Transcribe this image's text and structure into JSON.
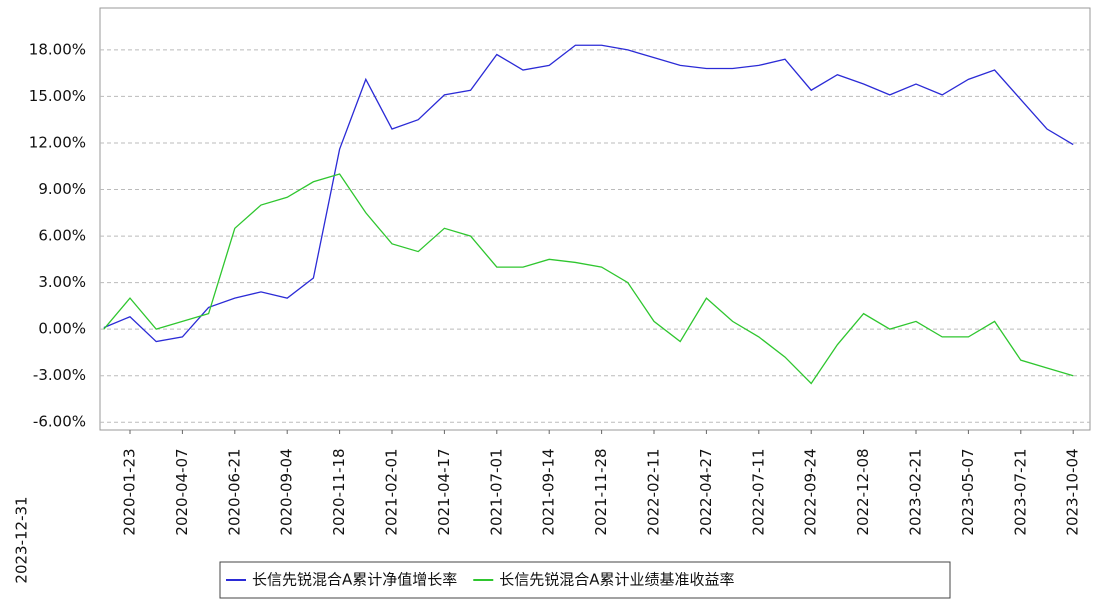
{
  "chart_data": {
    "type": "line",
    "x_start_label": "2023-12-31",
    "categories": [
      null,
      "2020-01-23",
      null,
      "2020-04-07",
      null,
      "2020-06-21",
      null,
      "2020-09-04",
      null,
      "2020-11-18",
      null,
      "2021-02-01",
      null,
      "2021-04-17",
      null,
      "2021-07-01",
      null,
      "2021-09-14",
      null,
      "2021-11-28",
      null,
      "2022-02-11",
      null,
      "2022-04-27",
      null,
      "2022-07-11",
      null,
      "2022-09-24",
      null,
      "2022-12-08",
      null,
      "2023-02-21",
      null,
      "2023-05-07",
      null,
      "2023-07-21",
      null,
      "2023-10-04"
    ],
    "series": [
      {
        "name": "长信先锐混合A累计净值增长率",
        "color": "#2b2bd6",
        "values": [
          0.1,
          0.8,
          -0.8,
          -0.5,
          1.4,
          2.0,
          2.4,
          2.0,
          3.3,
          11.6,
          16.1,
          12.9,
          13.5,
          15.1,
          15.4,
          17.7,
          16.7,
          17.0,
          18.3,
          18.3,
          18.0,
          17.5,
          17.0,
          16.8,
          16.8,
          17.0,
          17.4,
          15.4,
          16.4,
          15.8,
          15.1,
          15.8,
          15.1,
          16.1,
          16.7,
          14.8,
          12.9,
          11.9
        ]
      },
      {
        "name": "长信先锐混合A累计业绩基准收益率",
        "color": "#2fc62f",
        "values": [
          0.0,
          2.0,
          0.0,
          0.5,
          1.0,
          6.5,
          8.0,
          8.5,
          9.5,
          10.0,
          7.5,
          5.5,
          5.0,
          6.5,
          6.0,
          4.0,
          4.0,
          4.5,
          4.3,
          4.0,
          3.0,
          0.5,
          -0.8,
          2.0,
          0.5,
          -0.5,
          -1.8,
          -3.5,
          -1.0,
          1.0,
          0.0,
          0.5,
          -0.5,
          -0.5,
          0.5,
          -2.0,
          -2.5,
          -3.0
        ]
      }
    ],
    "ylim": [
      -6.5,
      20.7
    ],
    "yticks": [
      {
        "value": -6,
        "label": "-6.00%"
      },
      {
        "value": -3,
        "label": "-3.00%"
      },
      {
        "value": 0,
        "label": "0.00%"
      },
      {
        "value": 3,
        "label": "3.00%"
      },
      {
        "value": 6,
        "label": "6.00%"
      },
      {
        "value": 9,
        "label": "9.00%"
      },
      {
        "value": 12,
        "label": "12.00%"
      },
      {
        "value": 15,
        "label": "15.00%"
      },
      {
        "value": 18,
        "label": "18.00%"
      }
    ],
    "grid": true
  }
}
